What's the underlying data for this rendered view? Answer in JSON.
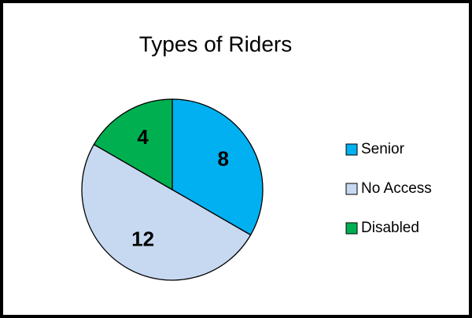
{
  "chart_data": {
    "type": "pie",
    "title": "Types of Riders",
    "categories": [
      "Senior",
      "No Access",
      "Disabled"
    ],
    "values": [
      8,
      12,
      4
    ],
    "colors": [
      "#00b0f0",
      "#c6d9f1",
      "#00b050"
    ],
    "legend": "right"
  }
}
